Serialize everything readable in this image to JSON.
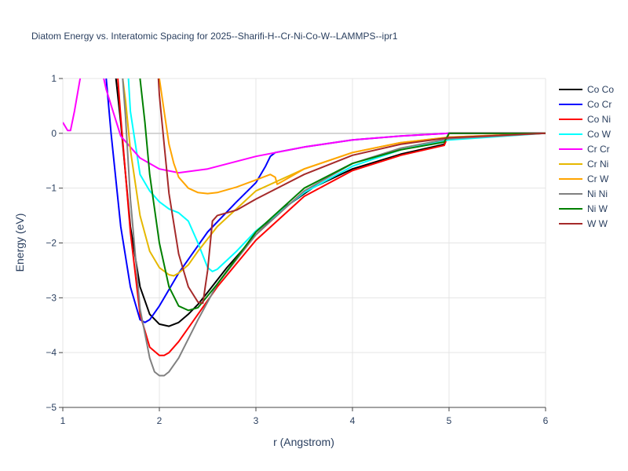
{
  "chart_data": {
    "type": "line",
    "title": "Diatom Energy vs. Interatomic Spacing for 2025--Sharifi-H--Cr-Ni-Co-W--LAMMPS--ipr1",
    "xlabel": "r (Angstrom)",
    "ylabel": "Energy (eV)",
    "xlim": [
      1,
      6
    ],
    "ylim": [
      -5,
      1
    ],
    "xticks": [
      1,
      2,
      3,
      4,
      5,
      6
    ],
    "yticks": [
      1,
      0,
      -1,
      -2,
      -3,
      -4,
      -5
    ],
    "xtick_labels": [
      "1",
      "2",
      "3",
      "4",
      "5",
      "6"
    ],
    "ytick_labels": [
      "1",
      "0",
      "−1",
      "−2",
      "−3",
      "−4",
      "−5"
    ],
    "grid": true,
    "legend_position": "right",
    "series": [
      {
        "name": "Co Co",
        "color": "#000000",
        "x": [
          1.55,
          1.6,
          1.7,
          1.8,
          1.9,
          2.0,
          2.1,
          2.2,
          2.3,
          2.4,
          2.5,
          2.7,
          3.0,
          3.3,
          3.6,
          4.0,
          4.5,
          4.95,
          5.0,
          6.0
        ],
        "y": [
          1.0,
          0.2,
          -1.7,
          -2.8,
          -3.3,
          -3.48,
          -3.52,
          -3.45,
          -3.3,
          -3.12,
          -2.9,
          -2.45,
          -1.85,
          -1.35,
          -0.98,
          -0.65,
          -0.38,
          -0.2,
          0.0,
          0.0
        ]
      },
      {
        "name": "Co Cr",
        "color": "#0000ff",
        "x": [
          1.45,
          1.5,
          1.6,
          1.7,
          1.8,
          1.85,
          1.9,
          2.0,
          2.2,
          2.5,
          2.8,
          3.0,
          3.1,
          3.15,
          3.2,
          3.5,
          4.0,
          4.5,
          5.0,
          6.0
        ],
        "y": [
          1.0,
          0.0,
          -1.7,
          -2.8,
          -3.4,
          -3.45,
          -3.4,
          -3.15,
          -2.55,
          -1.8,
          -1.25,
          -0.9,
          -0.6,
          -0.42,
          -0.35,
          -0.25,
          -0.12,
          -0.05,
          0.0,
          0.0
        ]
      },
      {
        "name": "Co Ni",
        "color": "#ff0000",
        "x": [
          1.57,
          1.6,
          1.7,
          1.8,
          1.9,
          2.0,
          2.05,
          2.1,
          2.2,
          2.4,
          2.6,
          3.0,
          3.5,
          4.0,
          4.5,
          4.95,
          5.0,
          6.0
        ],
        "y": [
          1.0,
          0.3,
          -1.8,
          -3.3,
          -3.9,
          -4.05,
          -4.05,
          -4.0,
          -3.8,
          -3.3,
          -2.8,
          -1.95,
          -1.15,
          -0.68,
          -0.4,
          -0.22,
          0.0,
          0.0
        ]
      },
      {
        "name": "Co W",
        "color": "#00ffff",
        "x": [
          1.68,
          1.7,
          1.8,
          1.9,
          2.0,
          2.1,
          2.2,
          2.3,
          2.4,
          2.5,
          2.55,
          2.6,
          2.8,
          3.0,
          3.5,
          4.0,
          4.5,
          5.0,
          6.0
        ],
        "y": [
          1.0,
          0.4,
          -0.75,
          -1.05,
          -1.25,
          -1.38,
          -1.45,
          -1.6,
          -2.0,
          -2.45,
          -2.52,
          -2.48,
          -2.15,
          -1.78,
          -1.08,
          -0.6,
          -0.3,
          -0.12,
          0.0
        ]
      },
      {
        "name": "Cr Cr",
        "color": "#ff00ff",
        "x": [
          1.0,
          1.05,
          1.08,
          1.12,
          1.18,
          1.3,
          1.45,
          1.6,
          1.8,
          2.0,
          2.2,
          2.5,
          3.0,
          3.5,
          4.0,
          4.5,
          5.0,
          6.0
        ],
        "y": [
          0.2,
          0.05,
          0.05,
          0.4,
          1.0,
          2.0,
          0.8,
          -0.05,
          -0.45,
          -0.65,
          -0.72,
          -0.65,
          -0.42,
          -0.25,
          -0.12,
          -0.05,
          0.0,
          0.0
        ]
      },
      {
        "name": "Cr Ni",
        "color": "#e6b800",
        "x": [
          1.62,
          1.65,
          1.7,
          1.8,
          1.9,
          2.0,
          2.1,
          2.15,
          2.2,
          2.3,
          2.4,
          2.6,
          3.0,
          3.5,
          4.0,
          4.5,
          5.0,
          6.0
        ],
        "y": [
          1.0,
          0.6,
          -0.3,
          -1.5,
          -2.15,
          -2.45,
          -2.58,
          -2.6,
          -2.55,
          -2.4,
          -2.15,
          -1.7,
          -1.05,
          -0.65,
          -0.35,
          -0.17,
          -0.07,
          0.0
        ]
      },
      {
        "name": "Cr W",
        "color": "#ffa500",
        "x": [
          2.0,
          2.05,
          2.1,
          2.15,
          2.2,
          2.3,
          2.4,
          2.5,
          2.6,
          2.8,
          3.0,
          3.15,
          3.2,
          3.22,
          3.3,
          3.5,
          4.0,
          4.5,
          5.0,
          6.0
        ],
        "y": [
          1.0,
          0.4,
          -0.2,
          -0.55,
          -0.8,
          -1.0,
          -1.08,
          -1.1,
          -1.08,
          -0.98,
          -0.85,
          -0.75,
          -0.8,
          -0.93,
          -0.85,
          -0.65,
          -0.35,
          -0.17,
          -0.07,
          0.0
        ]
      },
      {
        "name": "Ni Ni",
        "color": "#808080",
        "x": [
          1.62,
          1.65,
          1.7,
          1.8,
          1.9,
          1.95,
          2.0,
          2.05,
          2.1,
          2.2,
          2.4,
          2.6,
          3.0,
          3.5,
          4.0,
          4.5,
          5.0,
          6.0
        ],
        "y": [
          1.0,
          0.3,
          -1.2,
          -3.2,
          -4.1,
          -4.35,
          -4.42,
          -4.42,
          -4.35,
          -4.1,
          -3.4,
          -2.75,
          -1.85,
          -1.05,
          -0.55,
          -0.27,
          -0.1,
          0.0
        ]
      },
      {
        "name": "Ni W",
        "color": "#008000",
        "x": [
          1.8,
          1.85,
          1.9,
          2.0,
          2.1,
          2.2,
          2.3,
          2.4,
          2.6,
          3.0,
          3.5,
          4.0,
          4.5,
          4.95,
          5.0,
          6.0
        ],
        "y": [
          1.0,
          0.2,
          -0.75,
          -2.0,
          -2.8,
          -3.15,
          -3.23,
          -3.18,
          -2.75,
          -1.8,
          -1.0,
          -0.55,
          -0.3,
          -0.16,
          0.0,
          0.0
        ]
      },
      {
        "name": "W W",
        "color": "#a52a2a",
        "x": [
          1.99,
          2.0,
          2.05,
          2.1,
          2.2,
          2.3,
          2.4,
          2.45,
          2.5,
          2.55,
          2.6,
          2.8,
          3.0,
          3.5,
          4.0,
          4.5,
          5.0,
          6.0
        ],
        "y": [
          1.0,
          0.7,
          -0.2,
          -1.1,
          -2.2,
          -2.8,
          -3.08,
          -3.1,
          -2.5,
          -1.6,
          -1.5,
          -1.4,
          -1.2,
          -0.75,
          -0.4,
          -0.2,
          -0.08,
          0.0
        ]
      }
    ]
  }
}
